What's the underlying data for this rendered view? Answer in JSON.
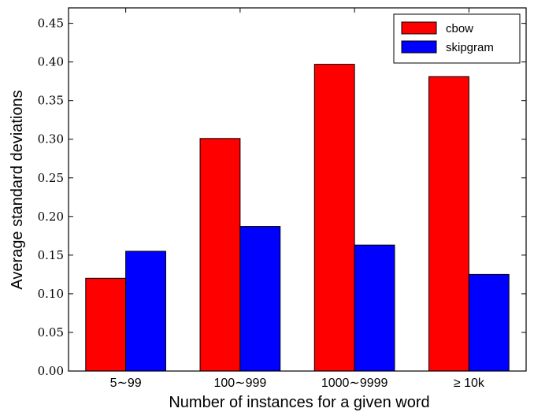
{
  "chart_data": {
    "type": "bar",
    "categories": [
      "5∼99",
      "100∼999",
      "1000∼9999",
      "≥ 10k"
    ],
    "series": [
      {
        "name": "cbow",
        "color": "#ff0000",
        "values": [
          0.12,
          0.301,
          0.397,
          0.381
        ]
      },
      {
        "name": "skipgram",
        "color": "#0000ff",
        "values": [
          0.155,
          0.187,
          0.163,
          0.125
        ]
      }
    ],
    "xlabel": "Number of instances for a given word",
    "ylabel": "Average standard deviations",
    "ylim": [
      0,
      0.47
    ],
    "yticks": [
      "0.00",
      "0.05",
      "0.10",
      "0.15",
      "0.20",
      "0.25",
      "0.30",
      "0.35",
      "0.40",
      "0.45"
    ],
    "grid": false,
    "legend": "top-right"
  }
}
